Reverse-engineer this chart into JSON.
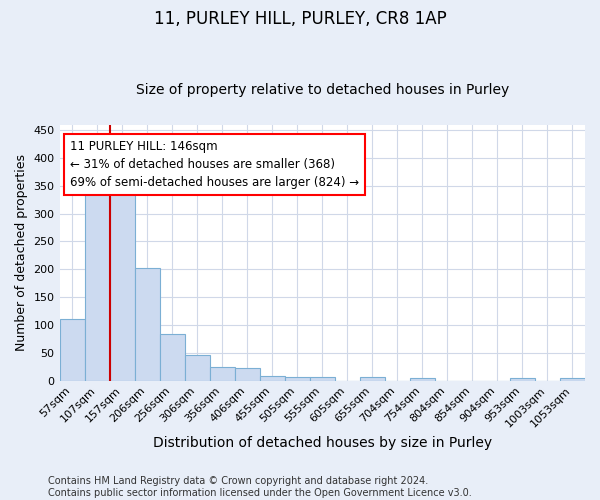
{
  "title1": "11, PURLEY HILL, PURLEY, CR8 1AP",
  "title2": "Size of property relative to detached houses in Purley",
  "xlabel": "Distribution of detached houses by size in Purley",
  "ylabel": "Number of detached properties",
  "bin_labels": [
    "57sqm",
    "107sqm",
    "157sqm",
    "206sqm",
    "256sqm",
    "306sqm",
    "356sqm",
    "406sqm",
    "455sqm",
    "505sqm",
    "555sqm",
    "605sqm",
    "655sqm",
    "704sqm",
    "754sqm",
    "804sqm",
    "854sqm",
    "904sqm",
    "953sqm",
    "1003sqm",
    "1053sqm"
  ],
  "bar_heights": [
    110,
    348,
    340,
    202,
    83,
    46,
    25,
    23,
    9,
    7,
    6,
    0,
    6,
    0,
    4,
    0,
    0,
    0,
    4,
    0,
    4
  ],
  "bar_color": "#ccdaf0",
  "bar_edge_color": "#7bafd4",
  "red_line_index": 2,
  "annotation_text": "11 PURLEY HILL: 146sqm\n← 31% of detached houses are smaller (368)\n69% of semi-detached houses are larger (824) →",
  "annotation_box_color": "white",
  "annotation_box_edge_color": "red",
  "red_line_color": "#cc0000",
  "ylim": [
    0,
    460
  ],
  "yticks": [
    0,
    50,
    100,
    150,
    200,
    250,
    300,
    350,
    400,
    450
  ],
  "footer_text": "Contains HM Land Registry data © Crown copyright and database right 2024.\nContains public sector information licensed under the Open Government Licence v3.0.",
  "plot_bg_color": "white",
  "fig_bg_color": "#e8eef8",
  "grid_color": "#d0d8e8",
  "title1_fontsize": 12,
  "title2_fontsize": 10,
  "xlabel_fontsize": 10,
  "ylabel_fontsize": 9,
  "tick_fontsize": 8,
  "footer_fontsize": 7,
  "annotation_fontsize": 8.5
}
